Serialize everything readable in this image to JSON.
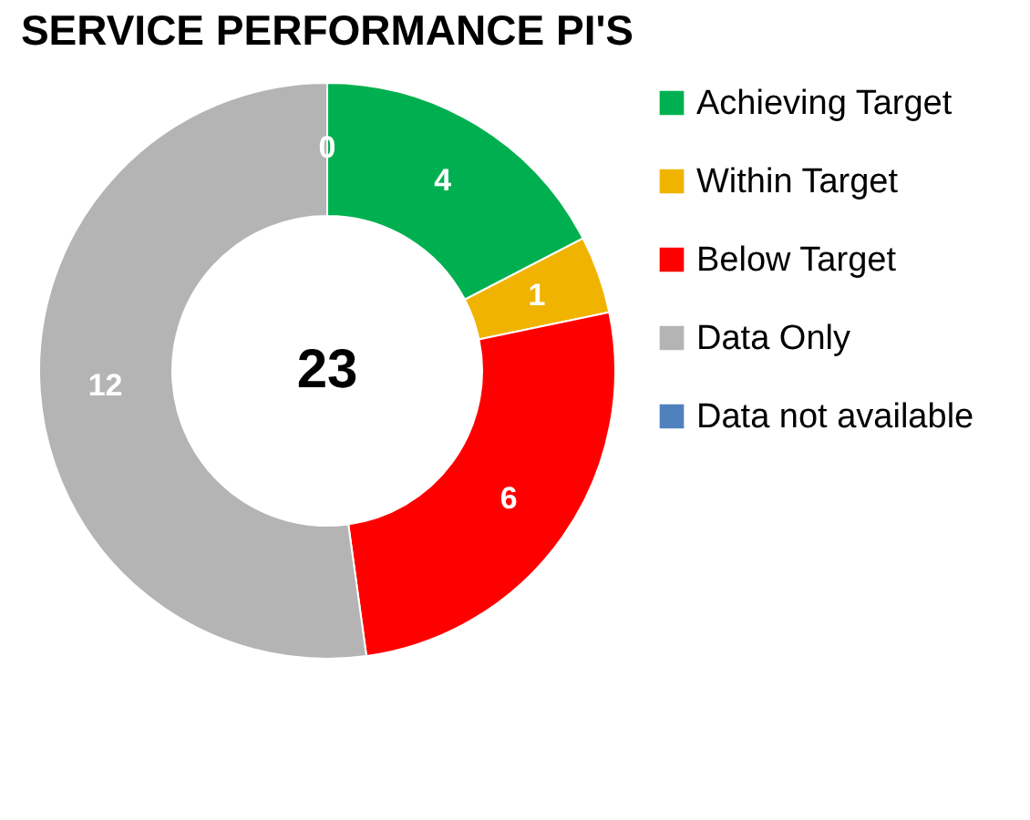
{
  "chart_data": {
    "type": "donut",
    "title": "SERVICE PERFORMANCE PI'S",
    "categories": [
      "Achieving Target",
      "Within Target",
      "Below Target",
      "Data Only",
      "Data not available"
    ],
    "values": [
      4,
      1,
      6,
      12,
      0
    ],
    "colors": [
      "#00b050",
      "#f0b400",
      "#ff0000",
      "#b4b4b4",
      "#4f81bd"
    ],
    "value_labels": [
      "4",
      "1",
      "6",
      "12",
      "0"
    ],
    "legend": "right",
    "annotations": [
      "23"
    ]
  }
}
